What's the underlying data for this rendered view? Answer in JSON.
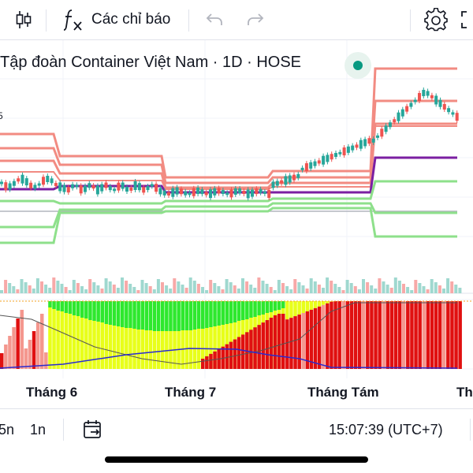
{
  "toolbar": {
    "indicators_label": "Các chỉ báo",
    "icons": [
      "candles-icon",
      "fx-icon",
      "undo-icon",
      "redo-icon",
      "settings-icon",
      "fullscreen-icon"
    ]
  },
  "legend": {
    "title": "Tập đoàn Container Việt Nam · 1D · HOSE",
    "status_color": "#089981",
    "left_edge_price_label": "5"
  },
  "colors": {
    "up": "#26a69a",
    "down": "#ef5350",
    "upper_bands": "#f28b82",
    "lower_bands": "#8ee08b",
    "middle_line": "#7b1fa2",
    "baseline": "#b2b5be",
    "hist_green": "#2ee82e",
    "hist_yellow": "#e8ff1a",
    "hist_red": "#e01010",
    "hist_pink": "#f4978e"
  },
  "x_axis": {
    "labels": [
      "Tháng 6",
      "Tháng 7",
      "Tháng Tám",
      "Th"
    ]
  },
  "bottom_bar": {
    "range_5n": "5n",
    "range_1n": "1n",
    "time": "15:07:39 (UTC+7)"
  }
}
